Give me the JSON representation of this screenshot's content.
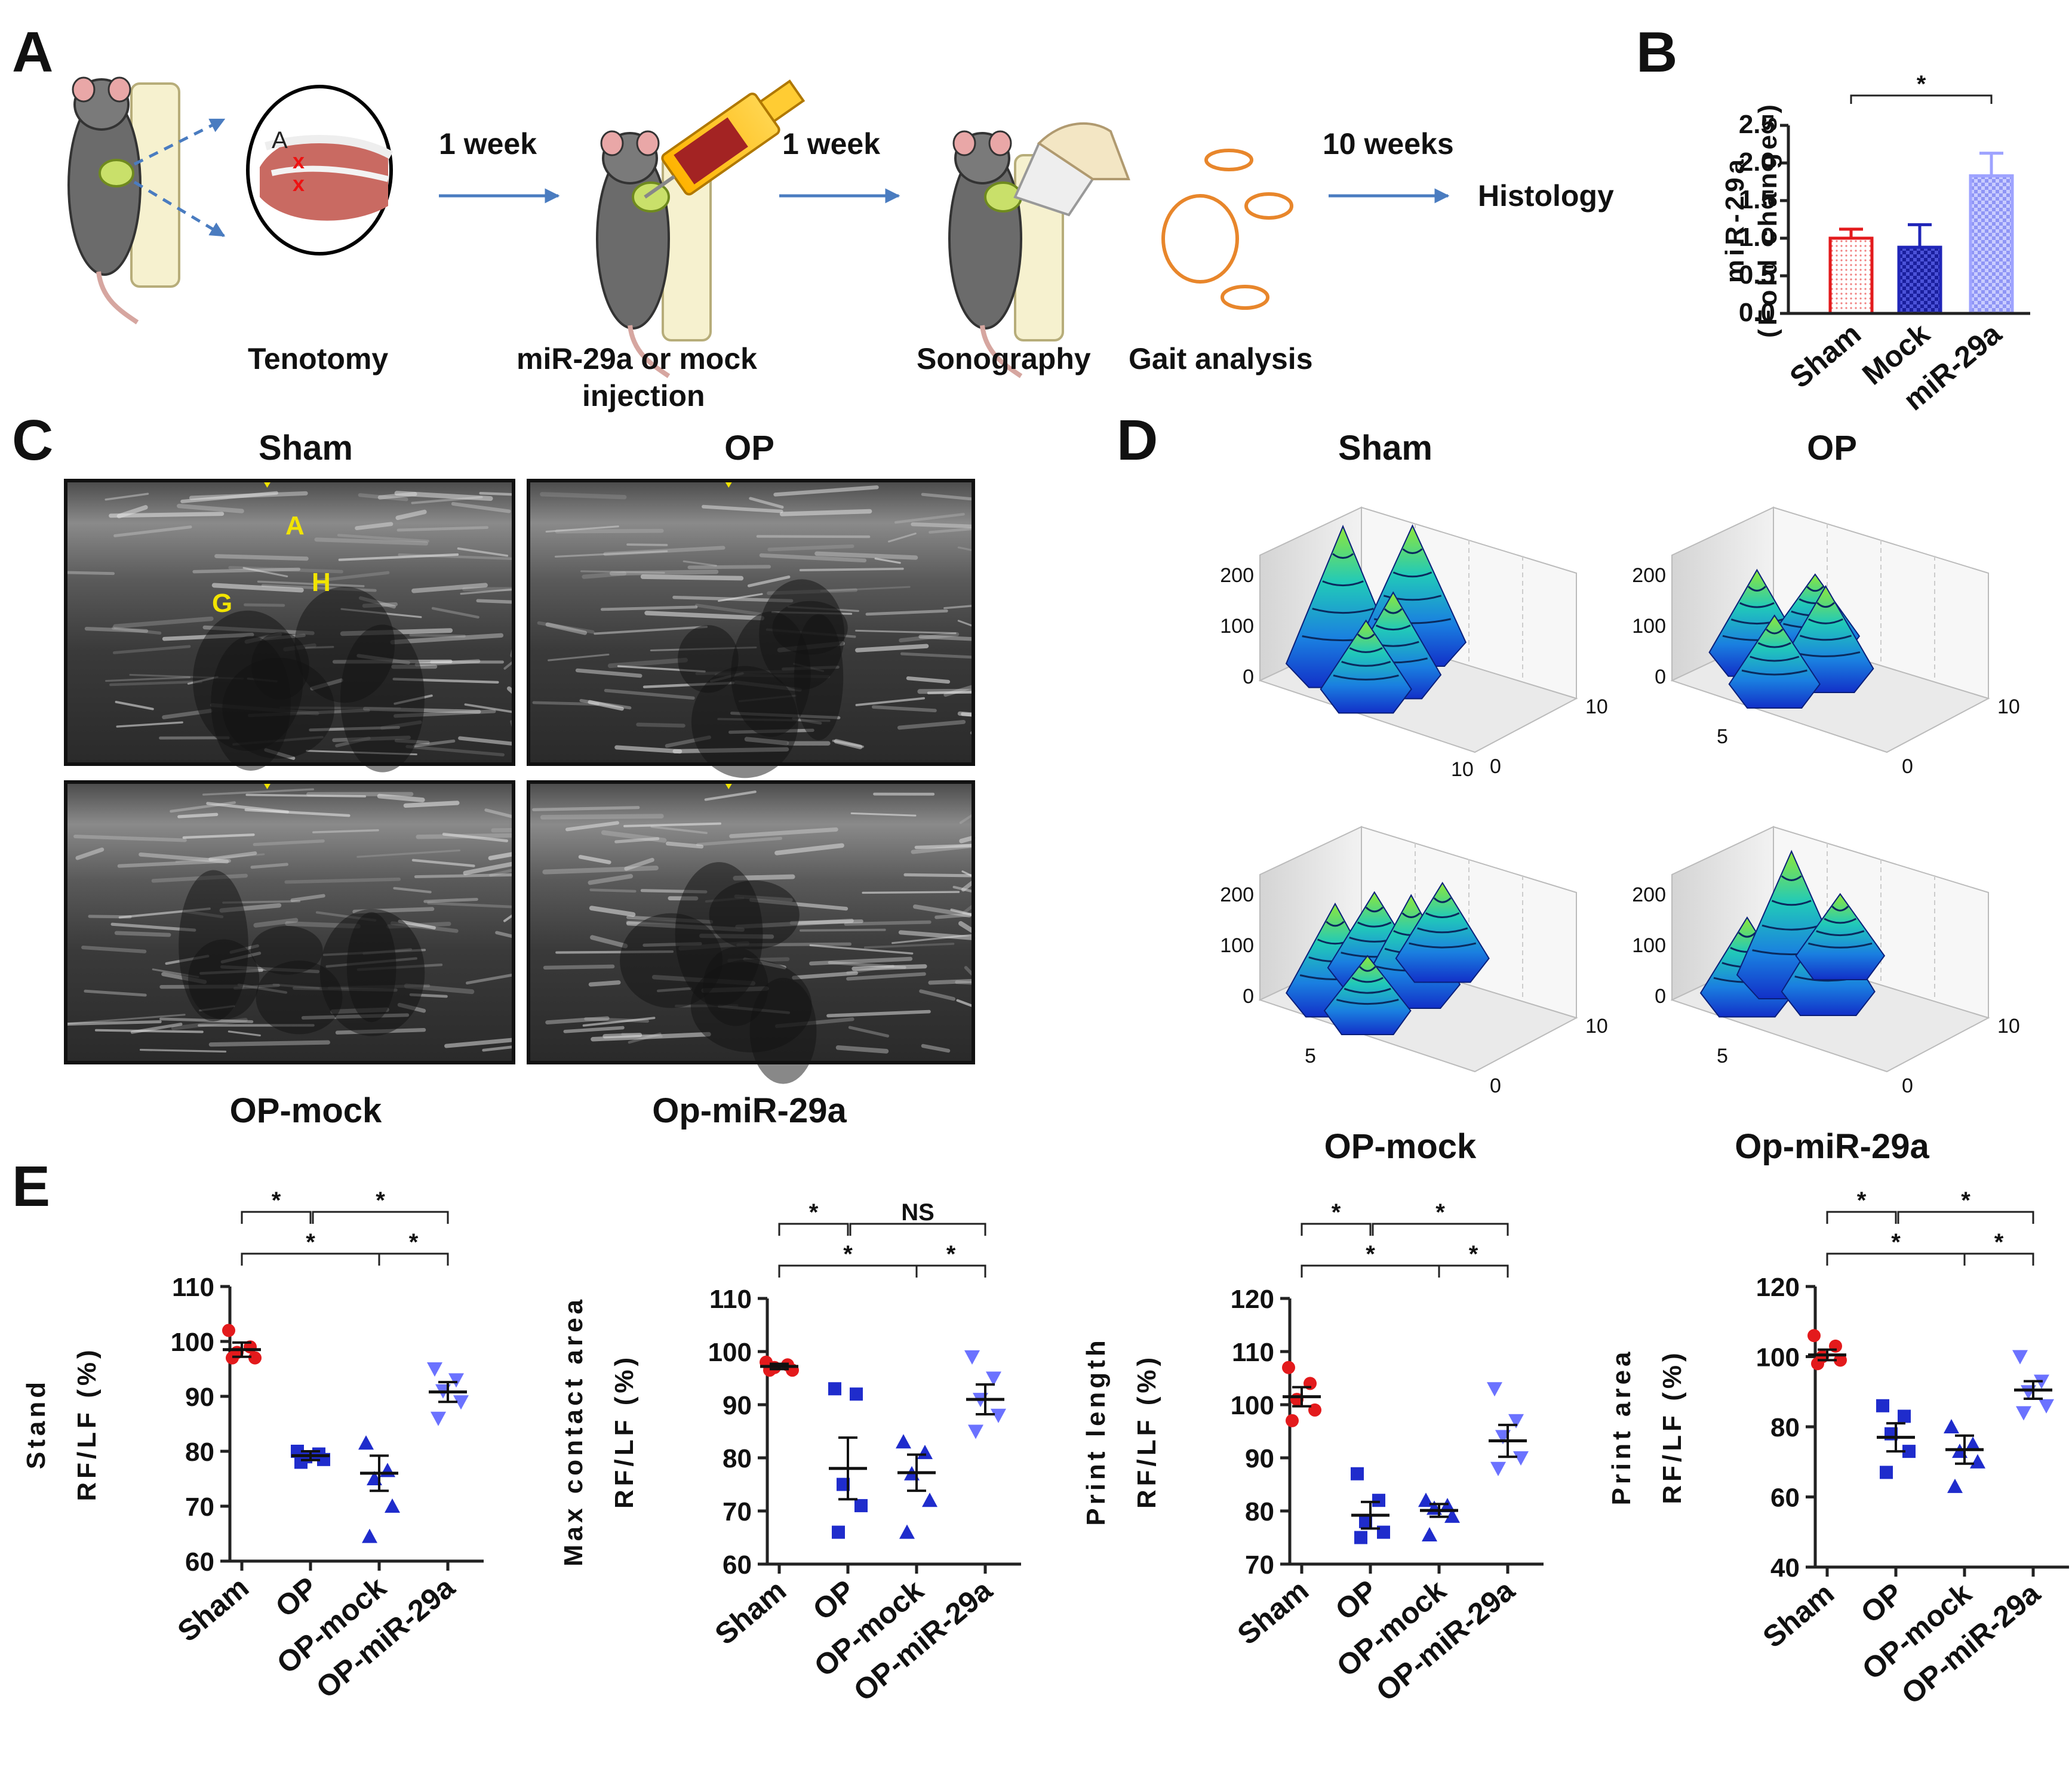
{
  "figure": {
    "panels": {
      "A": "A",
      "B": "B",
      "C": "C",
      "D": "D",
      "E": "E"
    },
    "workflow": {
      "steps": [
        "Tenotomy",
        "miR-29a or mock",
        "injection",
        "Sonography",
        "Gait analysis",
        "Histology"
      ],
      "intervals": [
        "1 week",
        "1 week",
        "10 weeks"
      ],
      "inset_label": "A",
      "inset_marks": "x"
    },
    "sonography": {
      "titles": [
        "Sham",
        "OP",
        "OP-mock",
        "Op-miR-29a"
      ],
      "labels": [
        "A",
        "G",
        "H"
      ]
    },
    "surfaces": {
      "titles": [
        "Sham",
        "OP",
        "OP-mock",
        "Op-miR-29a"
      ],
      "ticks": [
        "200",
        "100",
        "0",
        "10",
        "10",
        "0",
        "5"
      ]
    },
    "colors": {
      "sham": "#e31a1c",
      "op": "#1f2ccc",
      "opmock": "#1f2ccc",
      "mir": "#6b72ff",
      "mock_bar": "#2026b8",
      "mir_bar": "#9ea3ff"
    }
  },
  "chart_data": [
    {
      "type": "bar",
      "panel": "B",
      "categories": [
        "Sham",
        "Mock",
        "miR-29a"
      ],
      "values": [
        1.0,
        0.88,
        1.83
      ],
      "errors": [
        0.12,
        0.3,
        0.3
      ],
      "ylabel_line1": "miR-29a",
      "ylabel_line2": "(Fold changes)",
      "ylim": [
        0,
        2.5
      ],
      "yticks": [
        "0.0",
        "0.5",
        "1.0",
        "1.5",
        "2.0",
        "2.5"
      ],
      "significance": [
        {
          "from": 0,
          "to": 2,
          "label": "*"
        }
      ]
    },
    {
      "type": "scatter",
      "panel": "E",
      "categories": [
        "Sham",
        "OP",
        "OP-mock",
        "OP-miR-29a"
      ],
      "ylabel_line1": "Stand",
      "ylabel_line2": "RF/LF (%)",
      "ylim": [
        60,
        110
      ],
      "yticks": [
        "60",
        "70",
        "80",
        "90",
        "100",
        "110"
      ],
      "means": [
        98.5,
        79.2,
        76.0,
        90.8
      ],
      "sem": [
        1.3,
        0.8,
        3.2,
        1.8
      ],
      "points": [
        [
          102,
          99,
          98,
          97,
          97
        ],
        [
          80,
          79.5,
          79,
          78.5,
          78
        ],
        [
          81.5,
          76.5,
          75,
          70,
          64.5
        ],
        [
          95,
          93,
          91,
          89,
          86
        ]
      ],
      "significance": [
        {
          "from": 0,
          "to": 1,
          "label": "*",
          "level": 0
        },
        {
          "from": 1,
          "to": 3,
          "label": "*",
          "level": 0
        },
        {
          "from": 0,
          "to": 2,
          "label": "*",
          "level": 1
        },
        {
          "from": 2,
          "to": 3,
          "label": "*",
          "level": 1
        }
      ]
    },
    {
      "type": "scatter",
      "panel": "E",
      "categories": [
        "Sham",
        "OP",
        "OP-mock",
        "OP-miR-29a"
      ],
      "ylabel_line1": "Max contact area",
      "ylabel_line2": "RF/LF (%)",
      "ylim": [
        60,
        110
      ],
      "yticks": [
        "60",
        "70",
        "80",
        "90",
        "100",
        "110"
      ],
      "means": [
        97.2,
        78.0,
        77.2,
        91.0
      ],
      "sem": [
        0.5,
        5.8,
        3.4,
        2.8
      ],
      "points": [
        [
          98,
          97.5,
          97,
          96.5,
          96.5
        ],
        [
          93,
          92,
          75,
          71,
          66
        ],
        [
          83,
          81,
          77,
          72,
          66
        ],
        [
          99,
          95,
          91,
          88,
          85
        ]
      ],
      "significance": [
        {
          "from": 0,
          "to": 1,
          "label": "*",
          "level": 0
        },
        {
          "from": 1,
          "to": 3,
          "label": "NS",
          "level": 0
        },
        {
          "from": 0,
          "to": 2,
          "label": "*",
          "level": 1
        },
        {
          "from": 2,
          "to": 3,
          "label": "*",
          "level": 1
        }
      ]
    },
    {
      "type": "scatter",
      "panel": "E",
      "categories": [
        "Sham",
        "OP",
        "OP-mock",
        "OP-miR-29a"
      ],
      "ylabel_line1": "Print length",
      "ylabel_line2": "RF/LF (%)",
      "ylim": [
        70,
        120
      ],
      "yticks": [
        "70",
        "80",
        "90",
        "100",
        "110",
        "120"
      ],
      "means": [
        101.5,
        79.2,
        80.1,
        93.2
      ],
      "sem": [
        1.8,
        2.5,
        1.2,
        3.0
      ],
      "points": [
        [
          107,
          104,
          101,
          99,
          97
        ],
        [
          87,
          82,
          78,
          76,
          75
        ],
        [
          82,
          81,
          80.5,
          79,
          75.5
        ],
        [
          103,
          97,
          94,
          90,
          88
        ]
      ],
      "significance": [
        {
          "from": 0,
          "to": 1,
          "label": "*",
          "level": 0
        },
        {
          "from": 1,
          "to": 3,
          "label": "*",
          "level": 0
        },
        {
          "from": 0,
          "to": 2,
          "label": "*",
          "level": 1
        },
        {
          "from": 2,
          "to": 3,
          "label": "*",
          "level": 1
        }
      ]
    },
    {
      "type": "scatter",
      "panel": "E",
      "categories": [
        "Sham",
        "OP",
        "OP-mock",
        "OP-miR-29a"
      ],
      "ylabel_line1": "Print area",
      "ylabel_line2": "RF/LF (%)",
      "ylim": [
        40,
        120
      ],
      "yticks": [
        "40",
        "60",
        "80",
        "100",
        "120"
      ],
      "means": [
        100.5,
        77.0,
        73.5,
        90.5
      ],
      "sem": [
        1.5,
        4.0,
        4.0,
        2.5
      ],
      "points": [
        [
          106,
          103,
          100,
          99,
          98
        ],
        [
          86,
          83,
          78,
          73,
          67
        ],
        [
          80,
          75,
          73,
          70,
          63
        ],
        [
          100,
          93,
          90,
          86,
          84
        ]
      ],
      "significance": [
        {
          "from": 0,
          "to": 1,
          "label": "*",
          "level": 0
        },
        {
          "from": 1,
          "to": 3,
          "label": "*",
          "level": 0
        },
        {
          "from": 0,
          "to": 2,
          "label": "*",
          "level": 1
        },
        {
          "from": 2,
          "to": 3,
          "label": "*",
          "level": 1
        }
      ]
    }
  ]
}
